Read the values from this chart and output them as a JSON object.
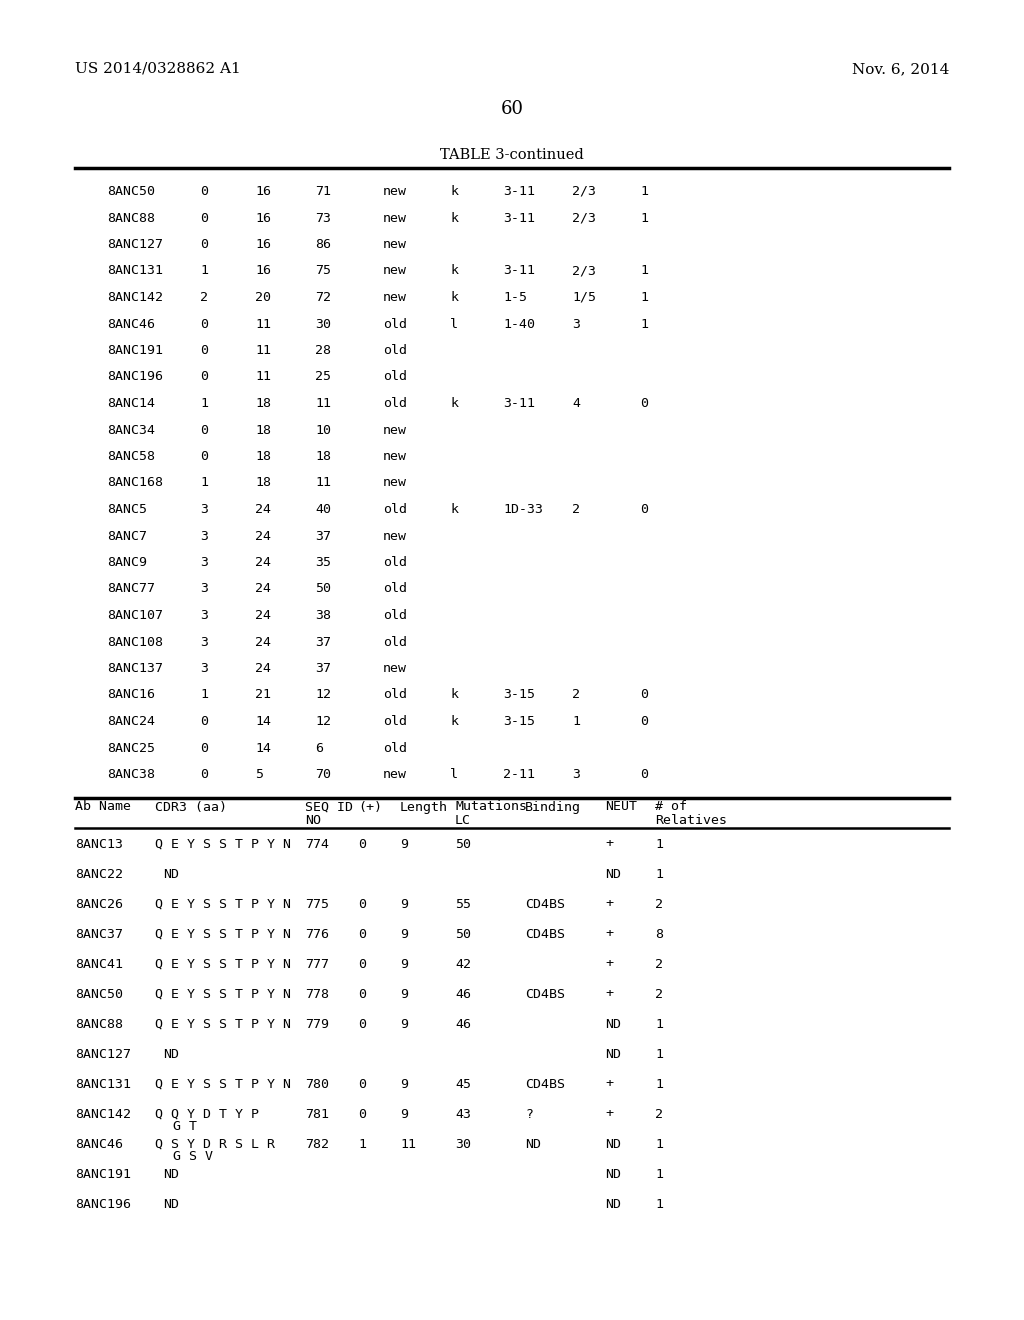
{
  "patent_left": "US 2014/0328862 A1",
  "patent_right": "Nov. 6, 2014",
  "page_number": "60",
  "table_title": "TABLE 3-continued",
  "bg_color": "#ffffff",
  "text_color": "#000000",
  "table1_rows": [
    [
      "8ANC50",
      "0",
      "16",
      "71",
      "new",
      "k",
      "3-11",
      "2/3",
      "1"
    ],
    [
      "8ANC88",
      "0",
      "16",
      "73",
      "new",
      "k",
      "3-11",
      "2/3",
      "1"
    ],
    [
      "8ANC127",
      "0",
      "16",
      "86",
      "new",
      "",
      "",
      "",
      ""
    ],
    [
      "8ANC131",
      "1",
      "16",
      "75",
      "new",
      "k",
      "3-11",
      "2/3",
      "1"
    ],
    [
      "8ANC142",
      "2",
      "20",
      "72",
      "new",
      "k",
      "1-5",
      "1/5",
      "1"
    ],
    [
      "8ANC46",
      "0",
      "11",
      "30",
      "old",
      "l",
      "1-40",
      "3",
      "1"
    ],
    [
      "8ANC191",
      "0",
      "11",
      "28",
      "old",
      "",
      "",
      "",
      ""
    ],
    [
      "8ANC196",
      "0",
      "11",
      "25",
      "old",
      "",
      "",
      "",
      ""
    ],
    [
      "8ANC14",
      "1",
      "18",
      "11",
      "old",
      "k",
      "3-11",
      "4",
      "0"
    ],
    [
      "8ANC34",
      "0",
      "18",
      "10",
      "new",
      "",
      "",
      "",
      ""
    ],
    [
      "8ANC58",
      "0",
      "18",
      "18",
      "new",
      "",
      "",
      "",
      ""
    ],
    [
      "8ANC168",
      "1",
      "18",
      "11",
      "new",
      "",
      "",
      "",
      ""
    ],
    [
      "8ANC5",
      "3",
      "24",
      "40",
      "old",
      "k",
      "1D-33",
      "2",
      "0"
    ],
    [
      "8ANC7",
      "3",
      "24",
      "37",
      "new",
      "",
      "",
      "",
      ""
    ],
    [
      "8ANC9",
      "3",
      "24",
      "35",
      "old",
      "",
      "",
      "",
      ""
    ],
    [
      "8ANC77",
      "3",
      "24",
      "50",
      "old",
      "",
      "",
      "",
      ""
    ],
    [
      "8ANC107",
      "3",
      "24",
      "38",
      "old",
      "",
      "",
      "",
      ""
    ],
    [
      "8ANC108",
      "3",
      "24",
      "37",
      "old",
      "",
      "",
      "",
      ""
    ],
    [
      "8ANC137",
      "3",
      "24",
      "37",
      "new",
      "",
      "",
      "",
      ""
    ],
    [
      "8ANC16",
      "1",
      "21",
      "12",
      "old",
      "k",
      "3-15",
      "2",
      "0"
    ],
    [
      "8ANC24",
      "0",
      "14",
      "12",
      "old",
      "k",
      "3-15",
      "1",
      "0"
    ],
    [
      "8ANC25",
      "0",
      "14",
      "6",
      "old",
      "",
      "",
      "",
      ""
    ],
    [
      "8ANC38",
      "0",
      "5",
      "70",
      "new",
      "l",
      "2-11",
      "3",
      "0"
    ]
  ],
  "table2_rows": [
    [
      "8ANC13",
      "Q E Y S S T P Y N",
      "774",
      "0",
      "9",
      "50",
      "",
      "+",
      "1",
      ""
    ],
    [
      "8ANC22",
      "ND",
      "",
      "",
      "",
      "",
      "",
      "ND",
      "1",
      ""
    ],
    [
      "8ANC26",
      "Q E Y S S T P Y N",
      "775",
      "0",
      "9",
      "55",
      "CD4BS",
      "+",
      "2",
      ""
    ],
    [
      "8ANC37",
      "Q E Y S S T P Y N",
      "776",
      "0",
      "9",
      "50",
      "CD4BS",
      "+",
      "8",
      ""
    ],
    [
      "8ANC41",
      "Q E Y S S T P Y N",
      "777",
      "0",
      "9",
      "42",
      "",
      "+",
      "2",
      ""
    ],
    [
      "8ANC50",
      "Q E Y S S T P Y N",
      "778",
      "0",
      "9",
      "46",
      "CD4BS",
      "+",
      "2",
      ""
    ],
    [
      "8ANC88",
      "Q E Y S S T P Y N",
      "779",
      "0",
      "9",
      "46",
      "",
      "ND",
      "1",
      ""
    ],
    [
      "8ANC127",
      "ND",
      "",
      "",
      "",
      "",
      "",
      "ND",
      "1",
      ""
    ],
    [
      "8ANC131",
      "Q E Y S S T P Y N",
      "780",
      "0",
      "9",
      "45",
      "CD4BS",
      "+",
      "1",
      ""
    ],
    [
      "8ANC142",
      "Q Q Y D T Y P",
      "781",
      "0",
      "9",
      "43",
      "?",
      "+",
      "2",
      "G T"
    ],
    [
      "8ANC46",
      "Q S Y D R S L R",
      "782",
      "1",
      "11",
      "30",
      "ND",
      "ND",
      "1",
      "G S V"
    ],
    [
      "8ANC191",
      "ND",
      "",
      "",
      "",
      "",
      "",
      "ND",
      "1",
      ""
    ],
    [
      "8ANC196",
      "ND",
      "",
      "",
      "",
      "",
      "",
      "ND",
      "1",
      ""
    ]
  ]
}
